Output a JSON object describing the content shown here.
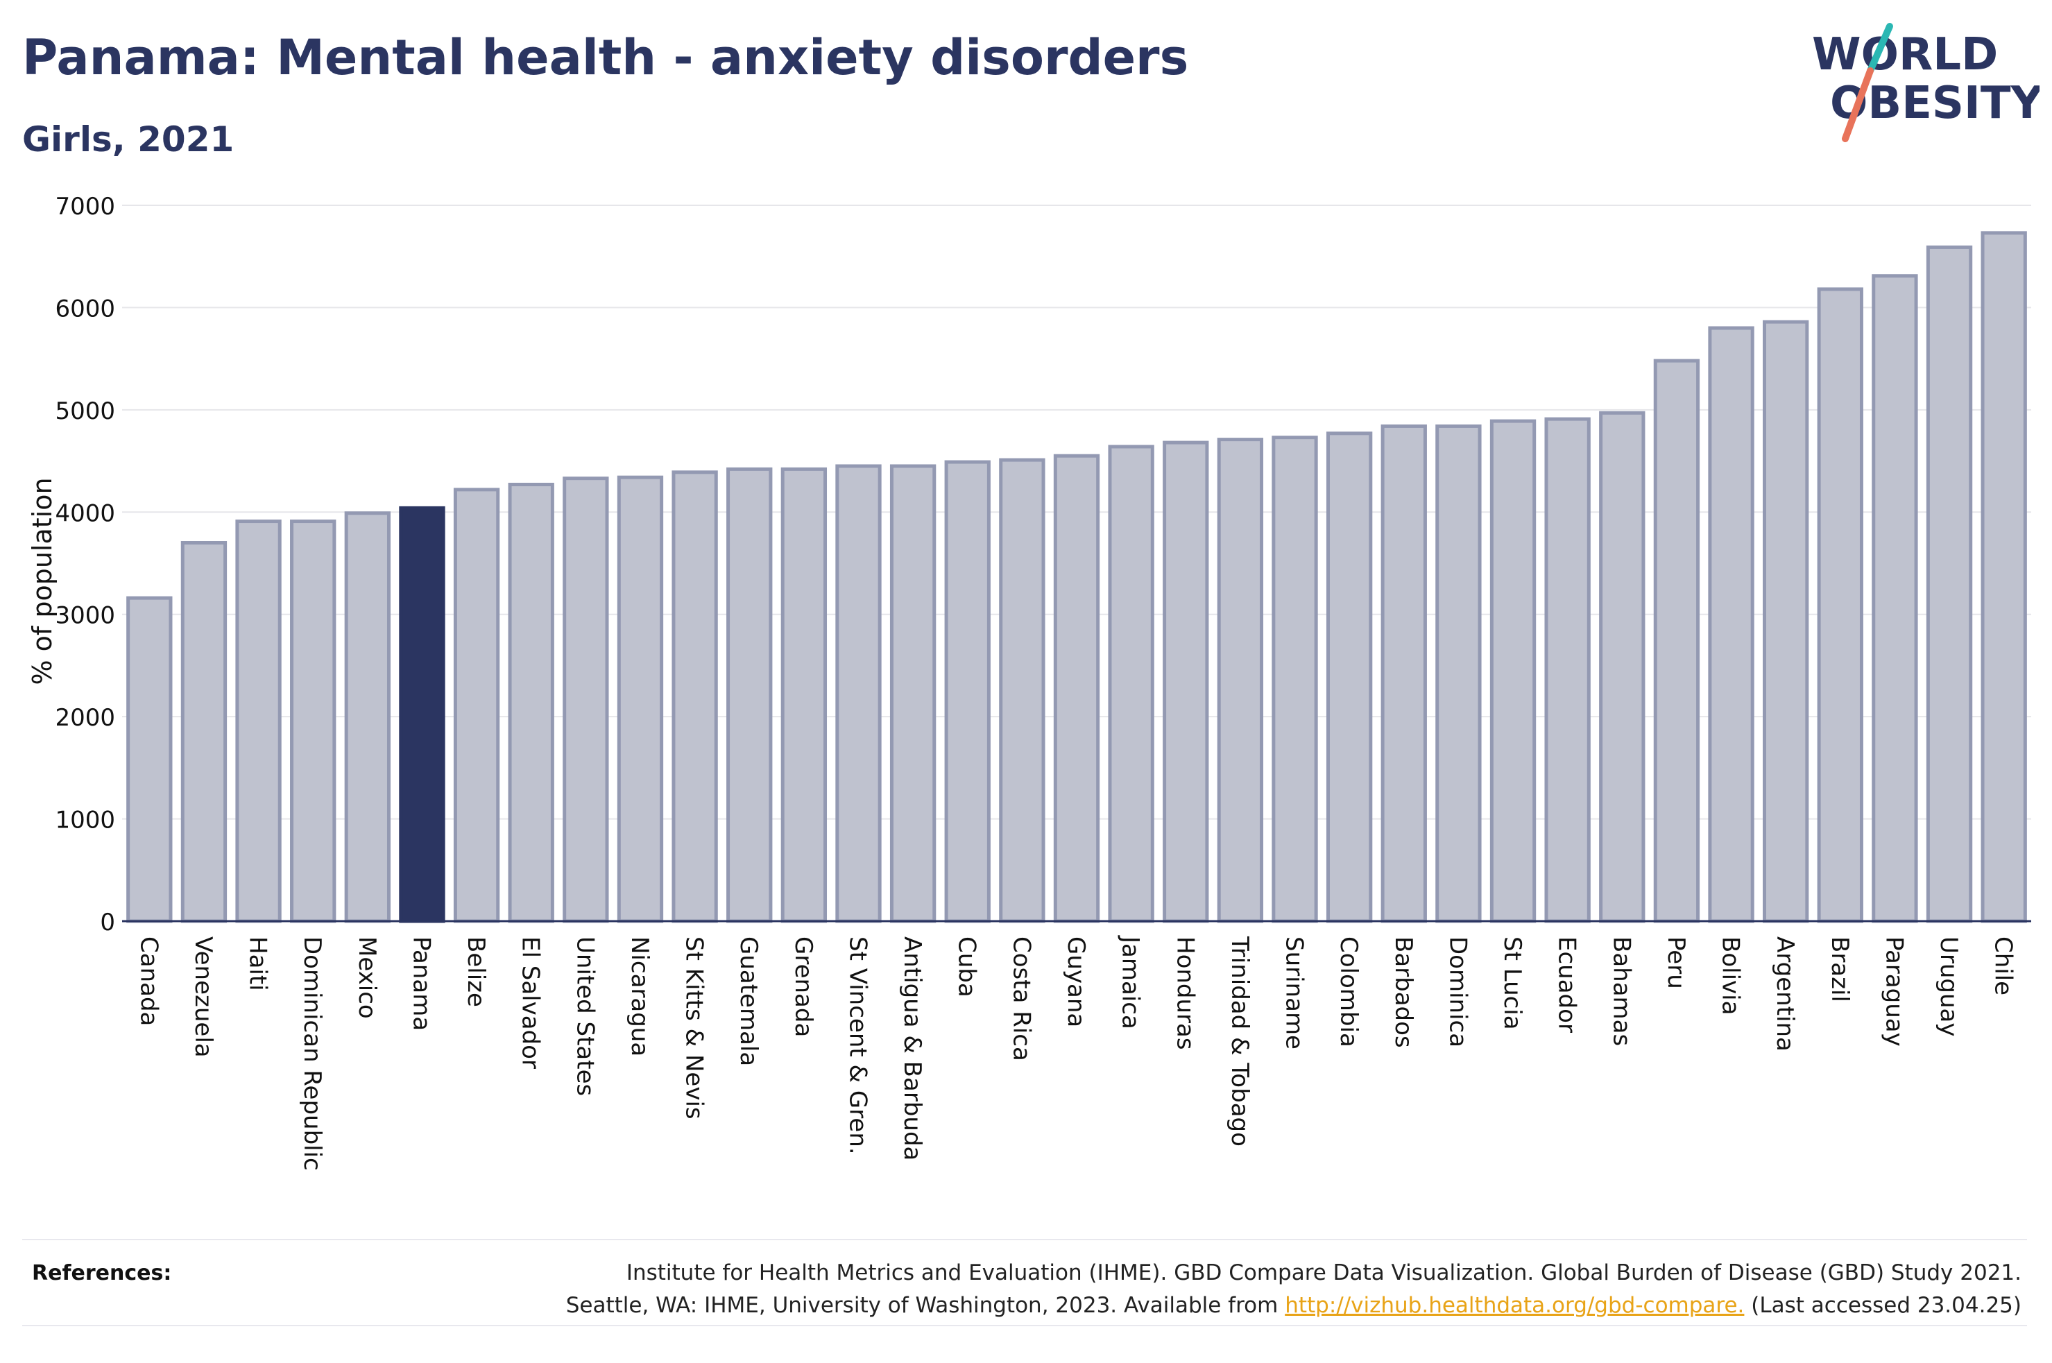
{
  "header": {
    "title": "Panama: Mental health - anxiety disorders",
    "subtitle": "Girls, 2021"
  },
  "logo": {
    "line1": "WORLD",
    "line2": "OBESITY",
    "accent_teal": "#2bb7b3",
    "accent_coral": "#e8735a"
  },
  "colors": {
    "highlight_bar": "#2b3561",
    "other_bar": "#bfc2cf",
    "other_bar_border": "#9399b2",
    "text": "#2b3561"
  },
  "chart_data": {
    "type": "bar",
    "ylabel": "% of population",
    "ylim": [
      0,
      7000
    ],
    "yticks": [
      0,
      1000,
      2000,
      3000,
      4000,
      5000,
      6000,
      7000
    ],
    "grid": true,
    "highlight": "Panama",
    "categories": [
      "Canada",
      "Venezuela",
      "Haiti",
      "Dominican Republic",
      "Mexico",
      "Panama",
      "Belize",
      "El Salvador",
      "United States",
      "Nicaragua",
      "St Kitts & Nevis",
      "Guatemala",
      "Grenada",
      "St Vincent & Gren.",
      "Antigua & Barbuda",
      "Cuba",
      "Costa Rica",
      "Guyana",
      "Jamaica",
      "Honduras",
      "Trinidad & Tobago",
      "Suriname",
      "Colombia",
      "Barbados",
      "Dominica",
      "St Lucia",
      "Ecuador",
      "Bahamas",
      "Peru",
      "Bolivia",
      "Argentina",
      "Brazil",
      "Paraguay",
      "Uruguay",
      "Chile"
    ],
    "values": [
      3160,
      3700,
      3910,
      3910,
      3990,
      4040,
      4220,
      4270,
      4330,
      4340,
      4390,
      4420,
      4420,
      4450,
      4450,
      4490,
      4510,
      4550,
      4640,
      4680,
      4710,
      4730,
      4770,
      4840,
      4840,
      4890,
      4910,
      4970,
      5480,
      5800,
      5860,
      6180,
      6310,
      6590,
      6730
    ]
  },
  "references": {
    "label": "References:",
    "line1": "Institute for Health Metrics and Evaluation (IHME). GBD Compare Data Visualization. Global Burden of Disease (GBD) Study 2021.",
    "line2_prefix": "Seattle, WA: IHME, University of Washington, 2023. Available from ",
    "link": "http://vizhub.healthdata.org/gbd-compare.",
    "line2_suffix": " (Last accessed 23.04.25)"
  }
}
